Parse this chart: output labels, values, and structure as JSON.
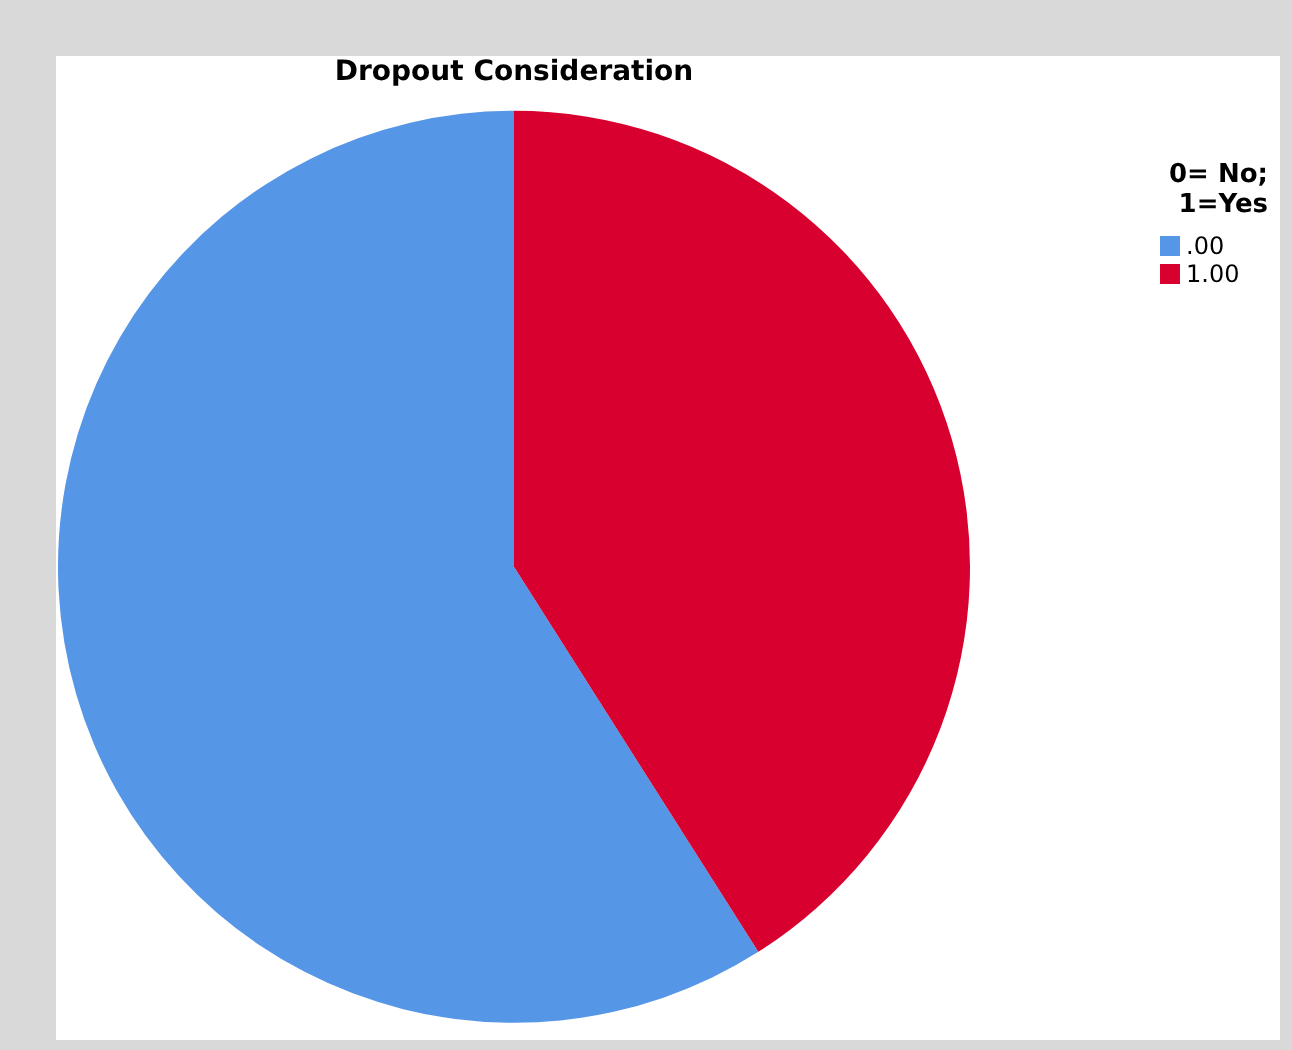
{
  "chart_data": {
    "type": "pie",
    "title": "Dropout Consideration",
    "legend_title": "0= No; 1=Yes",
    "legend": "top right",
    "categories": [
      ".00",
      "1.00"
    ],
    "values": [
      59,
      41
    ],
    "colors": [
      "#5596e6",
      "#d7002e"
    ]
  }
}
